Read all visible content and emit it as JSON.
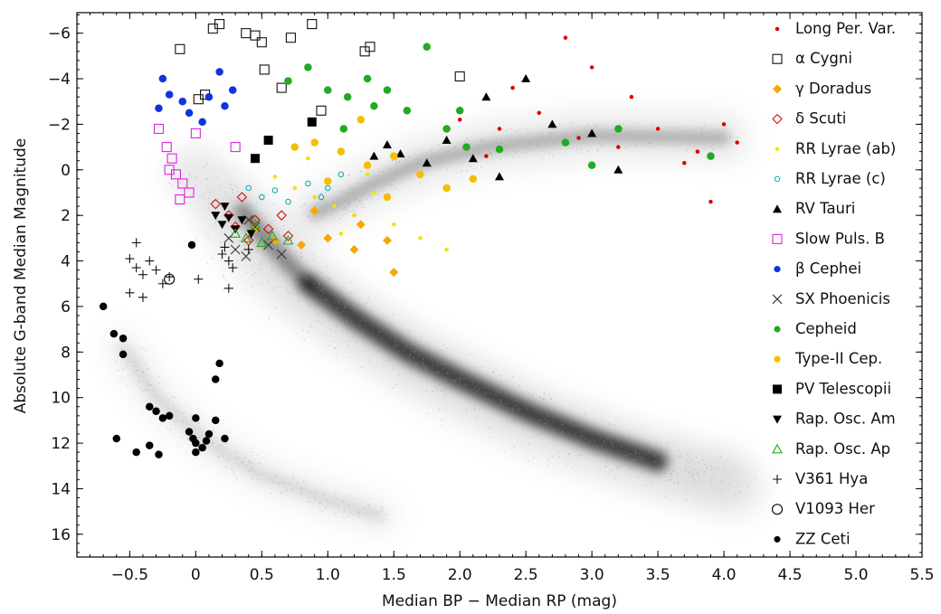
{
  "chart_data": {
    "type": "scatter",
    "xlabel": "Median BP − Median RP (mag)",
    "ylabel": "Absolute G-band Median Magnitude",
    "xlim": [
      -0.9,
      5.5
    ],
    "ylim": [
      17,
      -6.9
    ],
    "y_inverted": true,
    "x_ticks": [
      "−0.5",
      "0",
      "0.5",
      "1.0",
      "1.5",
      "2.0",
      "2.5",
      "3.0",
      "3.5",
      "4.0",
      "4.5",
      "5.0",
      "5.5"
    ],
    "x_tick_values": [
      -0.5,
      0,
      0.5,
      1.0,
      1.5,
      2.0,
      2.5,
      3.0,
      3.5,
      4.0,
      4.5,
      5.0,
      5.5
    ],
    "y_ticks": [
      "−6",
      "−4",
      "−2",
      "0",
      "2",
      "4",
      "6",
      "8",
      "10",
      "12",
      "14",
      "16"
    ],
    "y_tick_values": [
      -6,
      -4,
      -2,
      0,
      2,
      4,
      6,
      8,
      10,
      12,
      14,
      16
    ],
    "grid": false,
    "legend_position": "right",
    "background": "grey density of the field star sequence (main sequence, giant branch, white dwarf sequence)",
    "series": [
      {
        "name": "Long Per. Var.",
        "marker": "small-dot",
        "color": "#dd0000",
        "points": [
          [
            2.0,
            -2.2
          ],
          [
            2.3,
            -1.8
          ],
          [
            2.6,
            -2.5
          ],
          [
            2.9,
            -1.4
          ],
          [
            3.2,
            -1.0
          ],
          [
            3.5,
            -1.8
          ],
          [
            3.8,
            -0.8
          ],
          [
            4.1,
            -1.2
          ],
          [
            2.8,
            -5.8
          ],
          [
            3.0,
            -4.5
          ],
          [
            3.3,
            -3.2
          ],
          [
            2.4,
            -3.6
          ],
          [
            3.7,
            -0.3
          ],
          [
            4.0,
            -2.0
          ],
          [
            3.9,
            1.4
          ],
          [
            2.2,
            -0.6
          ]
        ]
      },
      {
        "name": "α Cygni",
        "marker": "open-square",
        "color": "#111111",
        "points": [
          [
            -0.12,
            -5.3
          ],
          [
            0.13,
            -6.2
          ],
          [
            0.18,
            -6.4
          ],
          [
            0.38,
            -6.0
          ],
          [
            0.45,
            -5.9
          ],
          [
            0.5,
            -5.6
          ],
          [
            0.72,
            -5.8
          ],
          [
            0.88,
            -6.4
          ],
          [
            0.52,
            -4.4
          ],
          [
            0.65,
            -3.6
          ],
          [
            0.95,
            -2.6
          ],
          [
            1.28,
            -5.2
          ],
          [
            1.32,
            -5.4
          ],
          [
            2.0,
            -4.1
          ],
          [
            0.02,
            -3.1
          ],
          [
            0.07,
            -3.3
          ]
        ]
      },
      {
        "name": "γ Doradus",
        "marker": "diamond",
        "color": "#f5a800",
        "points": [
          [
            0.45,
            2.6
          ],
          [
            0.6,
            3.1
          ],
          [
            0.8,
            3.3
          ],
          [
            1.0,
            3.0
          ],
          [
            1.2,
            3.5
          ],
          [
            1.45,
            3.1
          ],
          [
            1.5,
            4.5
          ],
          [
            1.25,
            2.4
          ],
          [
            0.9,
            1.8
          ]
        ]
      },
      {
        "name": "δ Scuti",
        "marker": "open-diamond",
        "color": "#cc1111",
        "points": [
          [
            0.15,
            1.5
          ],
          [
            0.25,
            2.0
          ],
          [
            0.35,
            1.2
          ],
          [
            0.45,
            2.2
          ],
          [
            0.55,
            2.6
          ],
          [
            0.65,
            2.0
          ],
          [
            0.7,
            2.9
          ],
          [
            0.4,
            3.1
          ],
          [
            0.3,
            2.5
          ]
        ]
      },
      {
        "name": "RR Lyrae (ab)",
        "marker": "small-dot",
        "color": "#f2e200",
        "points": [
          [
            0.6,
            0.3
          ],
          [
            0.75,
            0.8
          ],
          [
            0.9,
            1.2
          ],
          [
            1.05,
            1.6
          ],
          [
            1.2,
            2.0
          ],
          [
            1.35,
            1.0
          ],
          [
            1.5,
            2.4
          ],
          [
            1.7,
            3.0
          ],
          [
            1.9,
            3.5
          ],
          [
            0.85,
            -0.5
          ],
          [
            1.3,
            0.2
          ],
          [
            1.1,
            2.8
          ]
        ]
      },
      {
        "name": "RR Lyrae (c)",
        "marker": "open-circle-small",
        "color": "#00aaaa",
        "points": [
          [
            0.4,
            0.8
          ],
          [
            0.5,
            1.2
          ],
          [
            0.6,
            0.9
          ],
          [
            0.7,
            1.4
          ],
          [
            0.85,
            0.6
          ],
          [
            1.0,
            0.8
          ],
          [
            1.1,
            0.2
          ],
          [
            0.95,
            1.2
          ]
        ]
      },
      {
        "name": "RV Tauri",
        "marker": "triangle-up",
        "color": "#000000",
        "points": [
          [
            1.45,
            -1.1
          ],
          [
            1.55,
            -0.7
          ],
          [
            1.75,
            -0.3
          ],
          [
            1.9,
            -1.3
          ],
          [
            2.1,
            -0.5
          ],
          [
            2.3,
            0.3
          ],
          [
            2.5,
            -4.0
          ],
          [
            2.7,
            -2.0
          ],
          [
            3.0,
            -1.6
          ],
          [
            3.2,
            0.0
          ],
          [
            1.35,
            -0.6
          ],
          [
            2.2,
            -3.2
          ]
        ]
      },
      {
        "name": "Slow Puls. B",
        "marker": "open-square",
        "color": "#dd22dd",
        "points": [
          [
            -0.28,
            -1.8
          ],
          [
            -0.22,
            -1.0
          ],
          [
            -0.18,
            -0.5
          ],
          [
            -0.15,
            0.2
          ],
          [
            -0.1,
            0.6
          ],
          [
            -0.05,
            1.0
          ],
          [
            -0.12,
            1.3
          ],
          [
            0.0,
            -1.6
          ],
          [
            -0.2,
            0.0
          ],
          [
            0.3,
            -1.0
          ]
        ]
      },
      {
        "name": "β Cephei",
        "marker": "dot",
        "color": "#1133dd",
        "points": [
          [
            -0.25,
            -4.0
          ],
          [
            -0.2,
            -3.3
          ],
          [
            -0.1,
            -3.0
          ],
          [
            -0.05,
            -2.5
          ],
          [
            0.05,
            -2.1
          ],
          [
            0.1,
            -3.2
          ],
          [
            0.18,
            -4.3
          ],
          [
            0.28,
            -3.5
          ],
          [
            0.22,
            -2.8
          ],
          [
            -0.28,
            -2.7
          ]
        ]
      },
      {
        "name": "SX Phoenicis",
        "marker": "x",
        "color": "#333333",
        "points": [
          [
            0.25,
            3.0
          ],
          [
            0.3,
            3.5
          ],
          [
            0.38,
            3.8
          ],
          [
            0.45,
            2.5
          ],
          [
            0.55,
            3.3
          ],
          [
            0.65,
            3.7
          ],
          [
            0.4,
            2.2
          ]
        ]
      },
      {
        "name": "Cepheid",
        "marker": "dot",
        "color": "#22aa22",
        "points": [
          [
            0.7,
            -3.9
          ],
          [
            0.85,
            -4.5
          ],
          [
            1.0,
            -3.5
          ],
          [
            1.15,
            -3.2
          ],
          [
            1.3,
            -4.0
          ],
          [
            1.45,
            -3.5
          ],
          [
            1.6,
            -2.6
          ],
          [
            1.75,
            -5.4
          ],
          [
            1.9,
            -1.8
          ],
          [
            2.05,
            -1.0
          ],
          [
            2.3,
            -0.9
          ],
          [
            2.8,
            -1.2
          ],
          [
            3.0,
            -0.2
          ],
          [
            3.2,
            -1.8
          ],
          [
            3.9,
            -0.6
          ],
          [
            1.35,
            -2.8
          ],
          [
            2.0,
            -2.6
          ],
          [
            1.12,
            -1.8
          ]
        ]
      },
      {
        "name": "Type-II Cep.",
        "marker": "dot",
        "color": "#f7bd00",
        "points": [
          [
            0.9,
            -1.2
          ],
          [
            1.1,
            -0.8
          ],
          [
            1.3,
            -0.2
          ],
          [
            1.5,
            -0.6
          ],
          [
            1.7,
            0.2
          ],
          [
            1.9,
            0.8
          ],
          [
            2.1,
            0.4
          ],
          [
            1.45,
            1.2
          ],
          [
            1.0,
            0.5
          ],
          [
            0.75,
            -1.0
          ],
          [
            1.25,
            -2.2
          ]
        ]
      },
      {
        "name": "PV Telescopii",
        "marker": "square",
        "color": "#000000",
        "points": [
          [
            0.45,
            -0.5
          ],
          [
            0.55,
            -1.3
          ],
          [
            0.88,
            -2.1
          ]
        ]
      },
      {
        "name": "Rap. Osc. Am",
        "marker": "triangle-down",
        "color": "#000000",
        "points": [
          [
            0.15,
            2.0
          ],
          [
            0.2,
            2.4
          ],
          [
            0.25,
            2.1
          ],
          [
            0.3,
            2.6
          ],
          [
            0.35,
            2.2
          ],
          [
            0.42,
            2.8
          ],
          [
            0.22,
            1.6
          ]
        ]
      },
      {
        "name": "Rap. Osc. Ap",
        "marker": "open-triangle-up",
        "color": "#22aa22",
        "points": [
          [
            0.3,
            2.8
          ],
          [
            0.38,
            3.0
          ],
          [
            0.45,
            2.4
          ],
          [
            0.5,
            3.2
          ],
          [
            0.58,
            2.9
          ],
          [
            0.7,
            3.1
          ]
        ]
      },
      {
        "name": "V361 Hya",
        "marker": "plus",
        "color": "#111111",
        "points": [
          [
            -0.5,
            3.9
          ],
          [
            -0.45,
            4.3
          ],
          [
            -0.4,
            4.6
          ],
          [
            -0.35,
            4.0
          ],
          [
            -0.3,
            4.4
          ],
          [
            -0.25,
            5.0
          ],
          [
            -0.5,
            5.4
          ],
          [
            -0.4,
            5.6
          ],
          [
            -0.2,
            4.7
          ],
          [
            -0.45,
            3.2
          ],
          [
            0.02,
            4.8
          ],
          [
            0.2,
            3.7
          ],
          [
            0.22,
            3.4
          ],
          [
            0.25,
            4.0
          ],
          [
            0.4,
            3.5
          ],
          [
            0.25,
            5.2
          ],
          [
            0.28,
            4.3
          ]
        ]
      },
      {
        "name": "V1093 Her",
        "marker": "open-circle",
        "color": "#111111",
        "points": [
          [
            -0.2,
            4.8
          ]
        ]
      },
      {
        "name": "ZZ Ceti",
        "marker": "dot",
        "color": "#000000",
        "points": [
          [
            -0.7,
            6.0
          ],
          [
            -0.62,
            7.2
          ],
          [
            -0.55,
            7.4
          ],
          [
            -0.55,
            8.1
          ],
          [
            -0.35,
            10.4
          ],
          [
            -0.3,
            10.6
          ],
          [
            -0.25,
            10.9
          ],
          [
            -0.2,
            10.8
          ],
          [
            -0.35,
            12.1
          ],
          [
            -0.28,
            12.5
          ],
          [
            -0.6,
            11.8
          ],
          [
            -0.45,
            12.4
          ],
          [
            -0.05,
            11.5
          ],
          [
            -0.02,
            11.8
          ],
          [
            0.0,
            12.0
          ],
          [
            0.05,
            12.2
          ],
          [
            0.08,
            11.9
          ],
          [
            0.1,
            11.6
          ],
          [
            0.0,
            10.9
          ],
          [
            0.15,
            11.0
          ],
          [
            0.15,
            9.2
          ],
          [
            0.18,
            8.5
          ],
          [
            0.22,
            11.8
          ],
          [
            0.0,
            12.4
          ],
          [
            -0.03,
            3.3
          ]
        ]
      }
    ]
  }
}
